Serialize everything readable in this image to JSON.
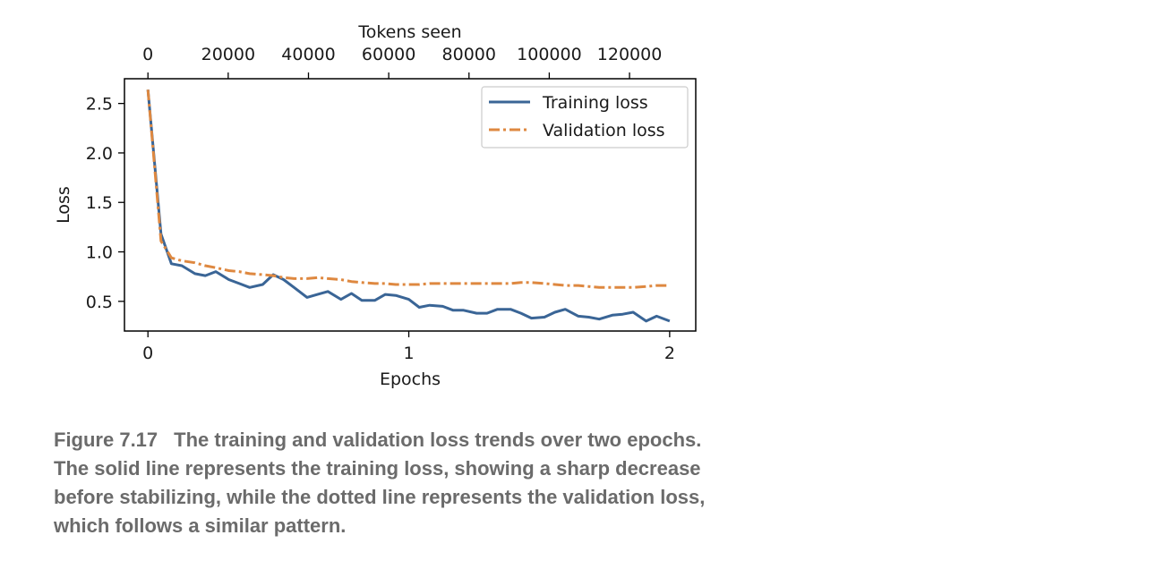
{
  "chart_data": {
    "type": "line",
    "xlabel": "Epochs",
    "ylabel": "Loss",
    "x2label": "Tokens seen",
    "xlim": [
      -0.09,
      2.1
    ],
    "ylim": [
      0.2,
      2.75
    ],
    "x2lim": [
      -5850,
      136500
    ],
    "xticks": [
      0,
      1,
      2
    ],
    "yticks": [
      0.5,
      1.0,
      1.5,
      2.0,
      2.5
    ],
    "x2ticks": [
      0,
      20000,
      40000,
      60000,
      80000,
      100000,
      120000
    ],
    "legend_position": "top-right",
    "grid": false,
    "series": [
      {
        "name": "Training loss",
        "color": "#3a6596",
        "style": "solid",
        "x": [
          0,
          0.05,
          0.09,
          0.13,
          0.18,
          0.22,
          0.26,
          0.31,
          0.35,
          0.39,
          0.44,
          0.48,
          0.52,
          0.56,
          0.61,
          0.65,
          0.69,
          0.74,
          0.78,
          0.82,
          0.87,
          0.91,
          0.95,
          1.0,
          1.04,
          1.08,
          1.13,
          1.17,
          1.21,
          1.26,
          1.3,
          1.34,
          1.39,
          1.43,
          1.47,
          1.52,
          1.56,
          1.6,
          1.65,
          1.69,
          1.73,
          1.78,
          1.82,
          1.86,
          1.91,
          1.95,
          2.0
        ],
        "values": [
          2.64,
          1.18,
          0.88,
          0.86,
          0.78,
          0.76,
          0.8,
          0.72,
          0.68,
          0.64,
          0.67,
          0.77,
          0.72,
          0.64,
          0.54,
          0.57,
          0.6,
          0.52,
          0.58,
          0.51,
          0.51,
          0.57,
          0.56,
          0.52,
          0.44,
          0.46,
          0.45,
          0.41,
          0.41,
          0.38,
          0.38,
          0.42,
          0.42,
          0.38,
          0.33,
          0.34,
          0.39,
          0.42,
          0.35,
          0.34,
          0.32,
          0.36,
          0.37,
          0.39,
          0.3,
          0.35,
          0.3
        ]
      },
      {
        "name": "Validation loss",
        "color": "#de8840",
        "style": "dashdot",
        "x": [
          0,
          0.05,
          0.09,
          0.13,
          0.18,
          0.22,
          0.26,
          0.31,
          0.35,
          0.39,
          0.44,
          0.48,
          0.52,
          0.56,
          0.61,
          0.65,
          0.69,
          0.74,
          0.78,
          0.82,
          0.87,
          0.91,
          0.95,
          1.0,
          1.04,
          1.08,
          1.13,
          1.17,
          1.21,
          1.26,
          1.3,
          1.34,
          1.39,
          1.43,
          1.47,
          1.52,
          1.56,
          1.6,
          1.65,
          1.69,
          1.73,
          1.78,
          1.82,
          1.86,
          1.91,
          1.95,
          2.0
        ],
        "values": [
          2.64,
          1.11,
          0.94,
          0.91,
          0.89,
          0.86,
          0.84,
          0.81,
          0.8,
          0.78,
          0.77,
          0.76,
          0.74,
          0.73,
          0.73,
          0.74,
          0.73,
          0.72,
          0.7,
          0.69,
          0.68,
          0.68,
          0.67,
          0.67,
          0.67,
          0.68,
          0.68,
          0.68,
          0.68,
          0.68,
          0.68,
          0.68,
          0.68,
          0.69,
          0.69,
          0.68,
          0.67,
          0.66,
          0.66,
          0.65,
          0.64,
          0.64,
          0.64,
          0.64,
          0.65,
          0.66,
          0.66
        ]
      }
    ]
  },
  "caption": {
    "label": "Figure 7.17",
    "text": "The training and validation loss trends over two epochs. The solid line represents the training loss, showing a sharp decrease before stabilizing, while the dotted line represents the validation loss, which follows a similar pattern."
  }
}
